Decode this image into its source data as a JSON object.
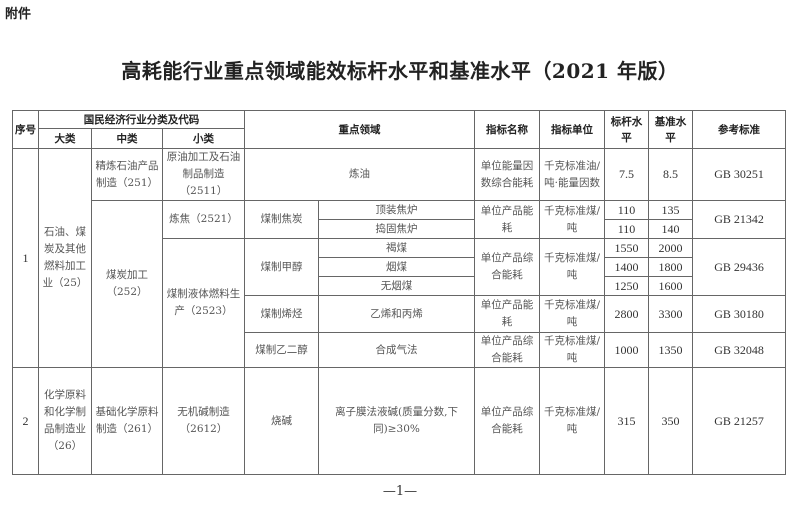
{
  "attachment_label": "附件",
  "title": "高耗能行业重点领域能效标杆水平和基准水平（2021 年版）",
  "header": {
    "seq": "序号",
    "classification": "国民经济行业分类及代码",
    "major": "大类",
    "medium": "中类",
    "minor": "小类",
    "focus_area": "重点领域",
    "indicator_name": "指标名称",
    "indicator_unit": "指标单位",
    "benchmark": "标杆水平",
    "baseline": "基准水平",
    "reference": "参考标准"
  },
  "rows": [
    {
      "seq": "1",
      "major": "石油、煤炭及其他燃料加工业（25）",
      "medium": "精炼石油产品制造（251）",
      "minor": "原油加工及石油制品制造（2511）",
      "area": "炼油",
      "name": "单位能量因数综合能耗",
      "unit": "千克标准油/吨·能量因数",
      "benchmark": "7.5",
      "baseline": "8.5",
      "reference": "GB 30251"
    },
    {
      "medium": "煤炭加工（252）",
      "minor": "炼焦（2521）",
      "area": "煤制焦炭",
      "sub": "顶装焦炉",
      "name": "单位产品能耗",
      "unit": "千克标准煤/吨",
      "benchmark": "110",
      "baseline": "135",
      "reference": "GB 21342"
    },
    {
      "sub": "捣固焦炉",
      "benchmark": "110",
      "baseline": "140"
    },
    {
      "minor": "煤制液体燃料生产（2523）",
      "area": "煤制甲醇",
      "sub": "褐煤",
      "name": "单位产品综合能耗",
      "unit": "千克标准煤/吨",
      "benchmark": "1550",
      "baseline": "2000",
      "reference": "GB 29436"
    },
    {
      "sub": "烟煤",
      "benchmark": "1400",
      "baseline": "1800"
    },
    {
      "sub": "无烟煤",
      "benchmark": "1250",
      "baseline": "1600"
    },
    {
      "area": "煤制烯烃",
      "sub": "乙烯和丙烯",
      "name": "单位产品能耗",
      "unit": "千克标准煤/吨",
      "benchmark": "2800",
      "baseline": "3300",
      "reference": "GB 30180"
    },
    {
      "area": "煤制乙二醇",
      "sub": "合成气法",
      "name": "单位产品综合能耗",
      "unit": "千克标准煤/吨",
      "benchmark": "1000",
      "baseline": "1350",
      "reference": "GB 32048"
    },
    {
      "seq": "2",
      "major": "化学原料和化学制品制造业（26）",
      "medium": "基础化学原料制造（261）",
      "minor": "无机碱制造（2612）",
      "area": "烧碱",
      "sub": "离子膜法液碱(质量分数,下同)≥30%",
      "name": "单位产品综合能耗",
      "unit": "千克标准煤/吨",
      "benchmark": "315",
      "baseline": "350",
      "reference": "GB 21257"
    }
  ],
  "page_number": "—1—"
}
